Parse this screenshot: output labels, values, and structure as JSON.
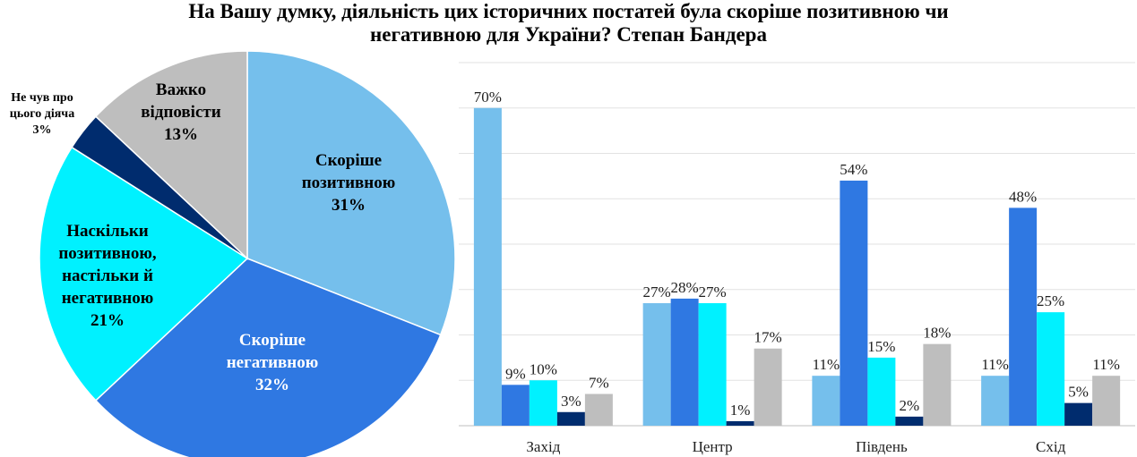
{
  "title": {
    "line1": "На Вашу думку, діяльність цих історичних постатей була скоріше позитивною чи",
    "line2": "негативною для України? Степан Бандера"
  },
  "chart_data": [
    {
      "type": "pie",
      "slices": [
        {
          "label": [
            "Скоріше",
            "позитивною",
            "31%"
          ],
          "value": 31,
          "color": "#75BFEC"
        },
        {
          "label": [
            "Скоріше",
            "негативною",
            "32%"
          ],
          "value": 32,
          "color": "#2F78E2"
        },
        {
          "label": [
            "Наскільки",
            "позитивною,",
            "настільки й",
            "негативною",
            "21%"
          ],
          "value": 21,
          "color": "#00F1FF"
        },
        {
          "label": [
            "Не чув про",
            "цього діяча",
            "3%"
          ],
          "value": 3,
          "color": "#002C6E"
        },
        {
          "label": [
            "Важко",
            "відповісти",
            "13%"
          ],
          "value": 13,
          "color": "#BEBEBE"
        }
      ]
    },
    {
      "type": "bar",
      "categories": [
        "Захід",
        "Центр",
        "Південь",
        "Схід"
      ],
      "ylim": [
        0,
        80
      ],
      "series": [
        {
          "values": [
            70,
            27,
            11,
            11
          ],
          "labels": [
            "70%",
            "27%",
            "11%",
            "11%"
          ],
          "color": "#75BFEC"
        },
        {
          "values": [
            9,
            28,
            54,
            48
          ],
          "labels": [
            "9%",
            "28%",
            "54%",
            "48%"
          ],
          "color": "#2F78E2"
        },
        {
          "values": [
            10,
            27,
            15,
            25
          ],
          "labels": [
            "10%",
            "27%",
            "15%",
            "25%"
          ],
          "color": "#00F1FF"
        },
        {
          "values": [
            3,
            1,
            2,
            5
          ],
          "labels": [
            "3%",
            "1%",
            "2%",
            "5%"
          ],
          "color": "#002C6E"
        },
        {
          "values": [
            7,
            17,
            18,
            11
          ],
          "labels": [
            "7%",
            "17%",
            "18%",
            "11%"
          ],
          "color": "#BEBEBE"
        }
      ]
    }
  ]
}
